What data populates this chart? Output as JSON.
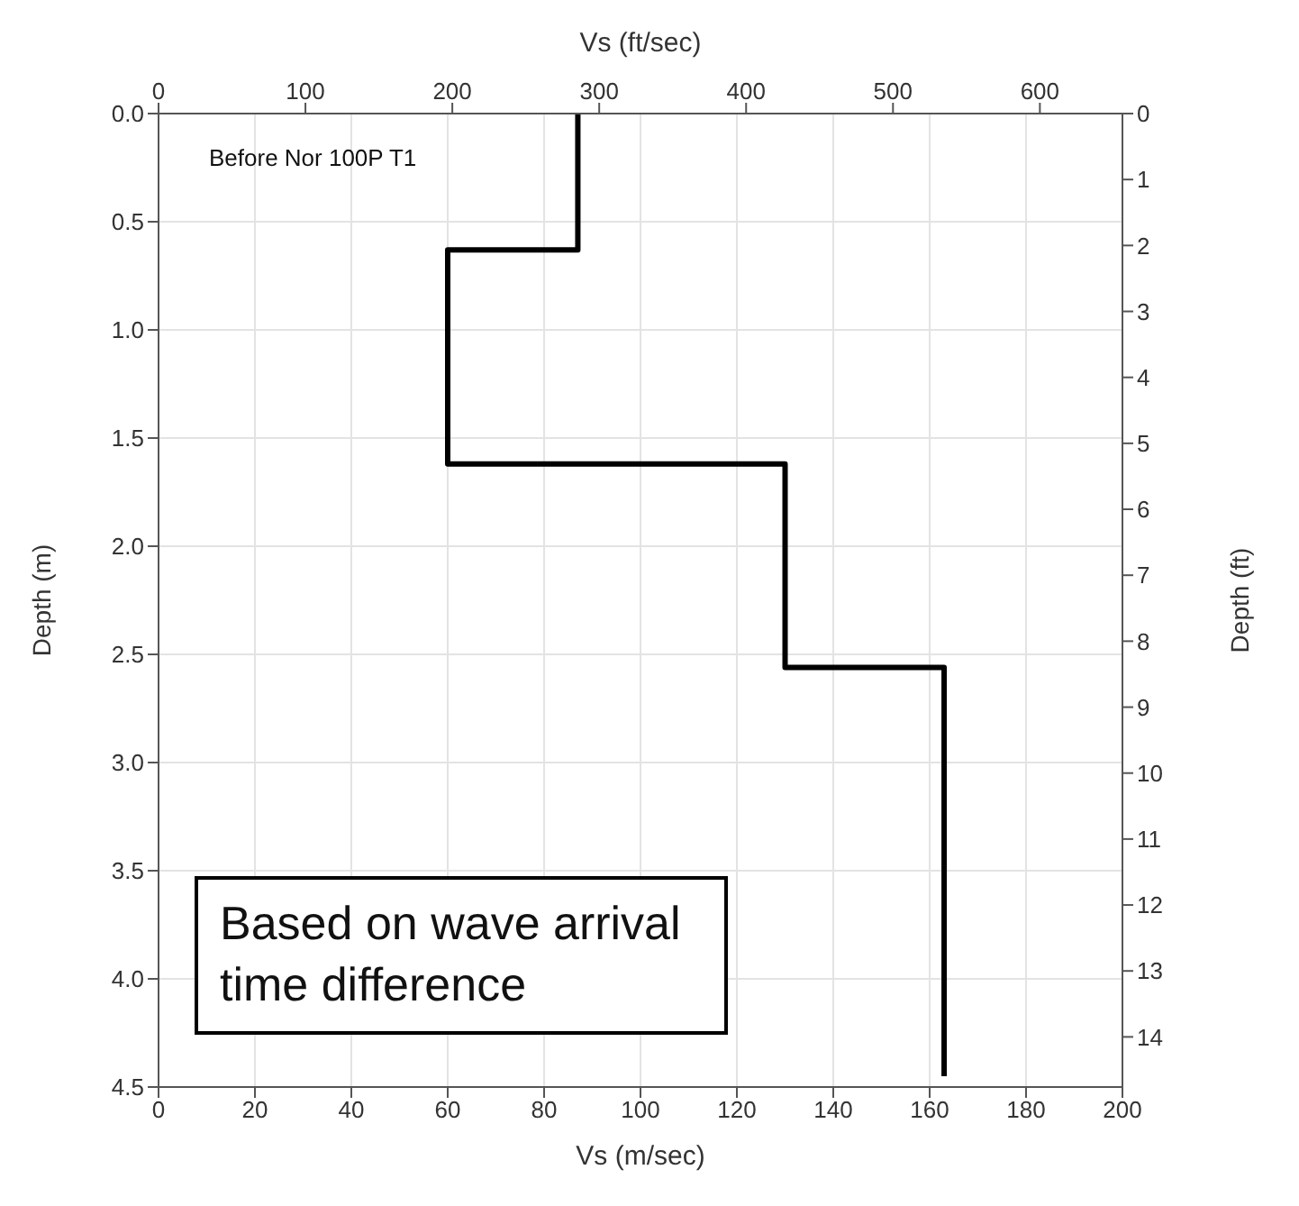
{
  "chart_data": {
    "type": "line",
    "xlabel": "Vs (m/sec)",
    "x2label": "Vs (ft/sec)",
    "ylabel": "Depth (m)",
    "y2label": "Depth (ft)",
    "x": [
      87,
      87,
      60,
      60,
      130,
      130,
      163,
      163
    ],
    "series": [
      {
        "color": "#000000",
        "values": [
          0,
          0.63,
          0.63,
          1.62,
          1.62,
          2.56,
          2.56,
          4.45
        ]
      }
    ],
    "xlim": [
      0,
      200
    ],
    "xticks": [
      0,
      20,
      40,
      60,
      80,
      100,
      120,
      140,
      160,
      180,
      200
    ],
    "x2lim": [
      0,
      656.2
    ],
    "x2ticks": [
      0,
      100,
      200,
      300,
      400,
      500,
      600
    ],
    "ylim": [
      4.5,
      0
    ],
    "yticks": [
      {
        "value": 0,
        "label": "0.0"
      },
      {
        "value": 0.5,
        "label": "0.5"
      },
      {
        "value": 1,
        "label": "1.0"
      },
      {
        "value": 1.5,
        "label": "1.5"
      },
      {
        "value": 2,
        "label": "2.0"
      },
      {
        "value": 2.5,
        "label": "2.5"
      },
      {
        "value": 3,
        "label": "3.0"
      },
      {
        "value": 3.5,
        "label": "3.5"
      },
      {
        "value": 4,
        "label": "4.0"
      },
      {
        "value": 4.5,
        "label": "4.5"
      }
    ],
    "y2lim": [
      14.76,
      0
    ],
    "y2ticks": [
      0,
      1,
      2,
      3,
      4,
      5,
      6,
      7,
      8,
      9,
      10,
      11,
      12,
      13,
      14
    ],
    "grid": true,
    "marker": "none",
    "line_style": "solid",
    "annotations": [
      "Before Nor 100P T1",
      "Based on wave arrival time difference"
    ]
  }
}
